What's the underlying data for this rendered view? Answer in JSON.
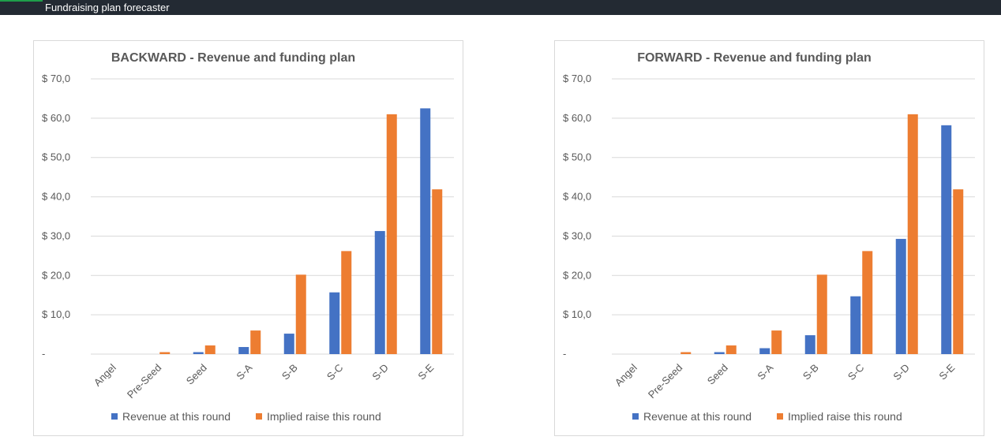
{
  "window": {
    "title": "Fundraising plan forecaster"
  },
  "colors": {
    "revenue": "#4472c4",
    "raise": "#ed7d31",
    "grid": "#d9d9d9",
    "text": "#595959"
  },
  "chart_data": [
    {
      "type": "bar",
      "title": "BACKWARD - Revenue and funding plan",
      "categories": [
        "Angel",
        "Pre-Seed",
        "Seed",
        "S-A",
        "S-B",
        "S-C",
        "S-D",
        "S-E"
      ],
      "ylim": [
        0,
        70
      ],
      "yticks": [
        0,
        10,
        20,
        30,
        40,
        50,
        60,
        70
      ],
      "ytick_labels": [
        "-",
        "$ 10,0",
        "$ 20,0",
        "$ 30,0",
        "$ 40,0",
        "$ 50,0",
        "$ 60,0",
        "$ 70,0"
      ],
      "grid": true,
      "legend": "bottom",
      "series": [
        {
          "name": "Revenue at this round",
          "color": "#4472c4",
          "values": [
            0,
            0,
            0.5,
            1.8,
            5.2,
            15.7,
            31.3,
            62.5
          ]
        },
        {
          "name": "Implied raise this round",
          "color": "#ed7d31",
          "values": [
            0,
            0.5,
            2.2,
            6.0,
            20.2,
            26.2,
            61.0,
            41.9
          ]
        }
      ]
    },
    {
      "type": "bar",
      "title": "FORWARD - Revenue and funding plan",
      "categories": [
        "Angel",
        "Pre-Seed",
        "Seed",
        "S-A",
        "S-B",
        "S-C",
        "S-D",
        "S-E"
      ],
      "ylim": [
        0,
        70
      ],
      "yticks": [
        0,
        10,
        20,
        30,
        40,
        50,
        60,
        70
      ],
      "ytick_labels": [
        "-",
        "$ 10,0",
        "$ 20,0",
        "$ 30,0",
        "$ 40,0",
        "$ 50,0",
        "$ 60,0",
        "$ 70,0"
      ],
      "grid": true,
      "legend": "bottom",
      "series": [
        {
          "name": "Revenue at this round",
          "color": "#4472c4",
          "values": [
            0,
            0,
            0.5,
            1.5,
            4.8,
            14.7,
            29.3,
            58.2
          ]
        },
        {
          "name": "Implied raise this round",
          "color": "#ed7d31",
          "values": [
            0,
            0.5,
            2.2,
            6.0,
            20.2,
            26.2,
            61.0,
            41.9
          ]
        }
      ]
    }
  ]
}
